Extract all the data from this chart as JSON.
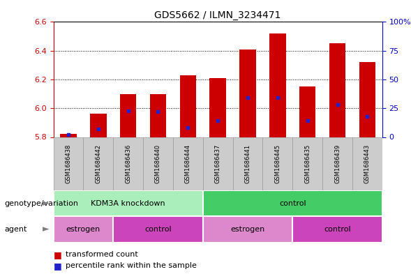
{
  "title": "GDS5662 / ILMN_3234471",
  "samples": [
    "GSM1686438",
    "GSM1686442",
    "GSM1686436",
    "GSM1686440",
    "GSM1686444",
    "GSM1686437",
    "GSM1686441",
    "GSM1686445",
    "GSM1686435",
    "GSM1686439",
    "GSM1686443"
  ],
  "transformed_counts": [
    5.82,
    5.96,
    6.1,
    6.1,
    6.23,
    6.21,
    6.41,
    6.52,
    6.15,
    6.45,
    6.32
  ],
  "percentile_ranks": [
    2,
    7,
    23,
    22,
    8,
    14,
    34,
    34,
    14,
    28,
    18
  ],
  "y_min": 5.8,
  "y_max": 6.6,
  "y_ticks": [
    5.8,
    6.0,
    6.2,
    6.4,
    6.6
  ],
  "right_y_ticks": [
    0,
    25,
    50,
    75,
    100
  ],
  "bar_color": "#cc0000",
  "blue_color": "#2222cc",
  "bar_width": 0.55,
  "genotype_groups": [
    {
      "label": "KDM3A knockdown",
      "start": 0,
      "end": 5,
      "color": "#aaeebb"
    },
    {
      "label": "control",
      "start": 5,
      "end": 11,
      "color": "#44cc66"
    }
  ],
  "agent_estrogen_color": "#dd88cc",
  "agent_control_color": "#cc44bb",
  "agent_groups": [
    {
      "label": "estrogen",
      "start": 0,
      "end": 2
    },
    {
      "label": "control",
      "start": 2,
      "end": 5
    },
    {
      "label": "estrogen",
      "start": 5,
      "end": 8
    },
    {
      "label": "control",
      "start": 8,
      "end": 11
    }
  ],
  "left_axis_color": "#cc0000",
  "right_axis_color": "#0000cc",
  "tick_label_fontsize": 8,
  "sample_fontsize": 6,
  "legend_fontsize": 8,
  "row_label_fontsize": 8,
  "group_label_fontsize": 8
}
